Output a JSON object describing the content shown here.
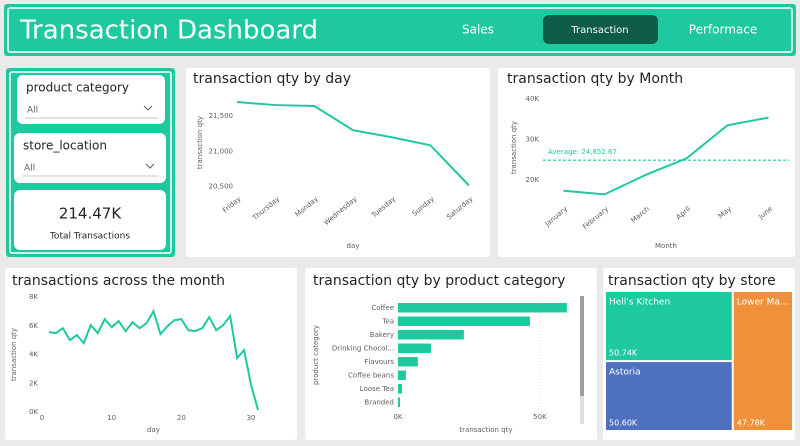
{
  "header": {
    "title": "Transaction Dashboard",
    "nav": [
      "Sales",
      "Transaction",
      "Performace"
    ],
    "active_nav": 1
  },
  "filters": [
    {
      "label": "product category",
      "value": "All"
    },
    {
      "label": "store_location",
      "value": "All"
    }
  ],
  "card": {
    "value": "214.47K",
    "label": "Total Transactions"
  },
  "chart_data": [
    {
      "type": "line",
      "title": "transaction qty by day",
      "x_label": "day",
      "y_label": "transaction qty",
      "categories": [
        "Friday",
        "Thursday",
        "Monday",
        "Wednesday",
        "Tuesday",
        "Sunday",
        "Saturday"
      ],
      "values": [
        21700,
        21657,
        21643,
        21300,
        21200,
        21086,
        20514
      ],
      "color": "#1fc9a0",
      "ylim": [
        20450,
        21800
      ],
      "yticks": [
        {
          "value": 20500,
          "label": "20,500"
        },
        {
          "value": 21000,
          "label": "21,000"
        },
        {
          "value": 21500,
          "label": "21,500"
        }
      ]
    },
    {
      "type": "line",
      "title": "transaction qty by Month",
      "x_label": "Month",
      "y_label": "transaction qty",
      "categories": [
        "January",
        "February",
        "March",
        "April",
        "May",
        "June"
      ],
      "values": [
        17300,
        16400,
        21200,
        25300,
        33500,
        35400
      ],
      "color": "#1fc9a0",
      "ylim": [
        15000,
        41000
      ],
      "yticks": [
        {
          "value": 20000,
          "label": "20K"
        },
        {
          "value": 30000,
          "label": "30K"
        },
        {
          "value": 40000,
          "label": "40K"
        }
      ],
      "average": {
        "value": 24852.67,
        "label": "Average: 24,852.67"
      }
    },
    {
      "type": "line",
      "title": "transactions across the month",
      "x_label": "day",
      "y_label": "transaction qty",
      "x": [
        1,
        2,
        3,
        4,
        5,
        6,
        7,
        8,
        9,
        10,
        11,
        12,
        13,
        14,
        15,
        16,
        17,
        18,
        19,
        20,
        21,
        22,
        23,
        24,
        25,
        26,
        27,
        28,
        29,
        30,
        31
      ],
      "values": [
        5560,
        5490,
        5830,
        5000,
        5350,
        4790,
        6040,
        5490,
        6460,
        5900,
        6320,
        5630,
        6250,
        5830,
        6180,
        7010,
        5420,
        5970,
        6390,
        6460,
        5690,
        5630,
        5830,
        6600,
        5690,
        6040,
        6670,
        3750,
        4310,
        1880,
        140
      ],
      "color": "#1fc9a0",
      "xlim": [
        0,
        32
      ],
      "xticks": [
        0,
        10,
        20,
        30
      ],
      "ylim": [
        0,
        8000
      ],
      "yticks": [
        {
          "value": 0,
          "label": "0K"
        },
        {
          "value": 2000,
          "label": "2K"
        },
        {
          "value": 4000,
          "label": "4K"
        },
        {
          "value": 6000,
          "label": "6K"
        },
        {
          "value": 8000,
          "label": "8K"
        }
      ]
    },
    {
      "type": "bar",
      "orientation": "horizontal",
      "title": "transaction qty by product category",
      "x_label": "transaction qty",
      "y_label": "product category",
      "categories": [
        "Coffee",
        "Tea",
        "Bakery",
        "Drinking Chocol...",
        "Flavours",
        "Coffee beans",
        "Loose Tea",
        "Branded"
      ],
      "values": [
        59500,
        46500,
        23200,
        11600,
        7000,
        2800,
        1400,
        700
      ],
      "color": "#1fc9a0",
      "xlim": [
        0,
        62000
      ],
      "xticks": [
        {
          "value": 0,
          "label": "0K"
        },
        {
          "value": 50000,
          "label": "50K"
        }
      ]
    },
    {
      "type": "treemap",
      "title": "transaction qty by store",
      "categories": [
        "Hell's Kitchen",
        "Astoria",
        "Lower Ma..."
      ],
      "values": [
        50740,
        50600,
        47780
      ],
      "value_labels": [
        "50.74K",
        "50.60K",
        "47.78K"
      ],
      "colors": [
        "#1fc9a0",
        "#4f6fbf",
        "#f0913a"
      ]
    }
  ]
}
